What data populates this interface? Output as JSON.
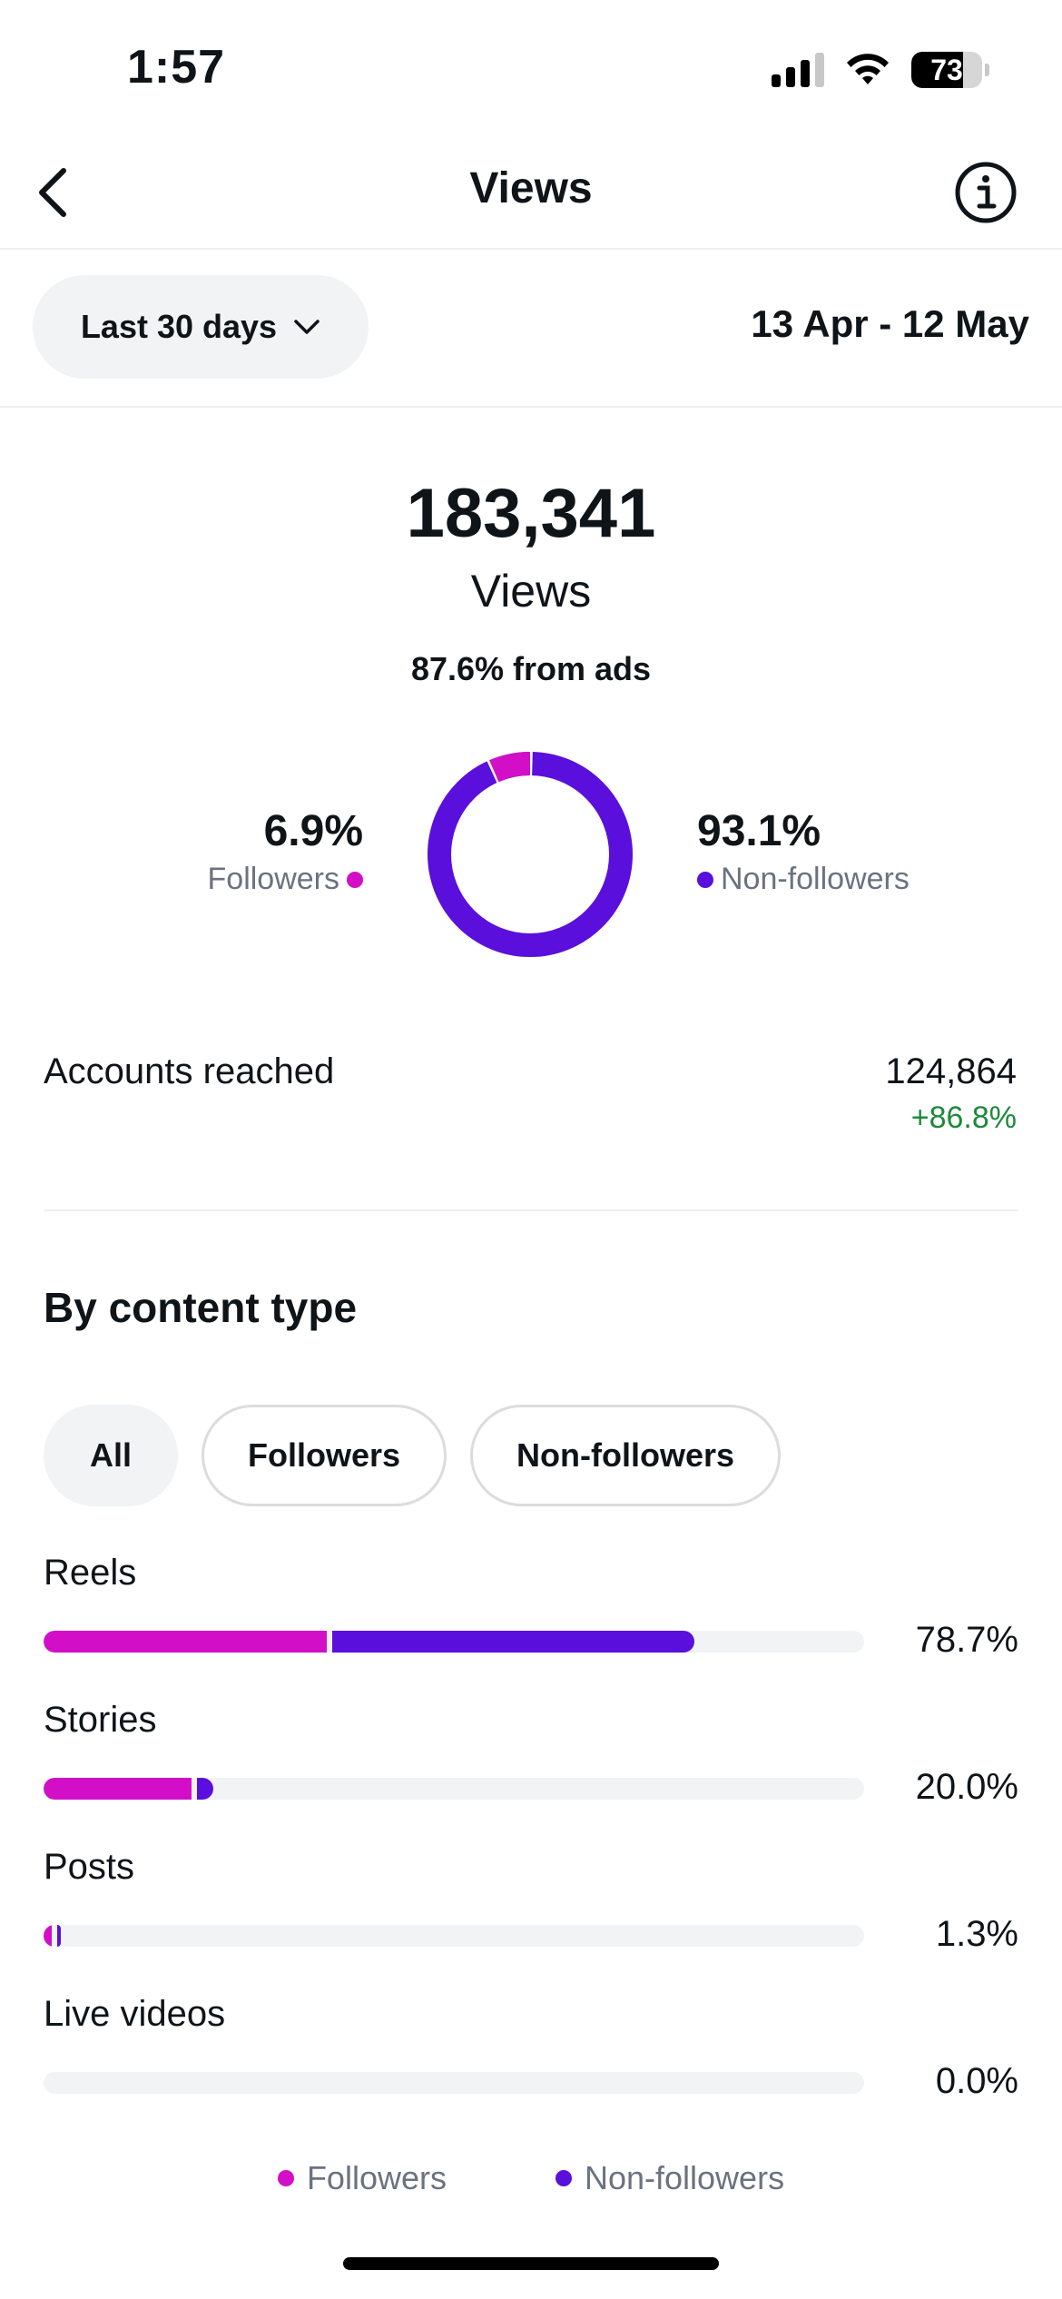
{
  "status_bar": {
    "time": "1:57",
    "battery_level": "73",
    "battery_fraction": 0.73
  },
  "header": {
    "title": "Views",
    "back_icon": "chevron-left-icon",
    "info_icon": "info-icon"
  },
  "range": {
    "selected": "Last 30 days",
    "date_range": "13 Apr - 12 May"
  },
  "summary": {
    "total": "183,341",
    "label": "Views",
    "ads_note": "87.6% from ads",
    "followers_pct": "6.9%",
    "followers_label": "Followers",
    "followers_value": 6.9,
    "nonfollowers_pct": "93.1%",
    "nonfollowers_label": "Non-followers",
    "nonfollowers_value": 93.1
  },
  "accounts_reached": {
    "label": "Accounts reached",
    "value": "124,864",
    "change": "+86.8%"
  },
  "content_type": {
    "title": "By content type",
    "chips": [
      {
        "label": "All",
        "active": true
      },
      {
        "label": "Followers",
        "active": false
      },
      {
        "label": "Non-followers",
        "active": false
      }
    ],
    "rows": [
      {
        "label": "Reels",
        "pct": "78.7%",
        "followers_share": 34.5,
        "nonfollowers_share": 44.2
      },
      {
        "label": "Stories",
        "pct": "20.0%",
        "followers_share": 18.0,
        "nonfollowers_share": 2.0
      },
      {
        "label": "Posts",
        "pct": "1.3%",
        "followers_share": 1.0,
        "nonfollowers_share": 0.4
      },
      {
        "label": "Live videos",
        "pct": "0.0%",
        "followers_share": 0,
        "nonfollowers_share": 0
      }
    ],
    "legend": {
      "followers": "Followers",
      "nonfollowers": "Non-followers"
    }
  },
  "colors": {
    "followers": "#d20fc7",
    "nonfollowers": "#5a0fdc",
    "positive": "#1d8a3b",
    "chip_bg": "#f2f3f5"
  }
}
